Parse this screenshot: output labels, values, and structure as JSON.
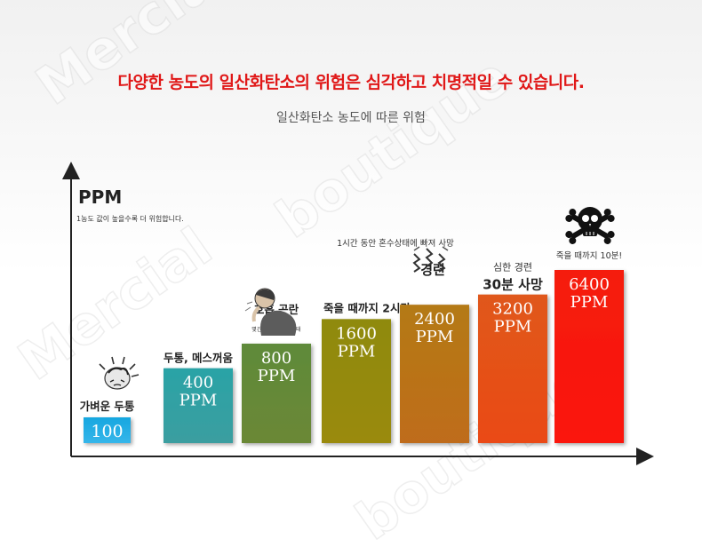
{
  "header": {
    "main_title": "다양한 농도의 일산화탄소의 위험은 심각하고 치명적일 수 있습니다.",
    "subtitle": "일산화탄소 농도에 따른 위험",
    "unit": "PPM",
    "unit_note": "1농도 값이 높을수록 더 위험합니다."
  },
  "colors": {
    "title": "#e01818",
    "bars": [
      "#17a7e0",
      "#2aa3a6",
      "#5f8a3a",
      "#8f8a10",
      "#b47a18",
      "#e0581a",
      "#f51e10"
    ],
    "bars_bottom": [
      "#35b6ea",
      "#3b9ea0",
      "#6b8836",
      "#9a8a10",
      "#bf6c1a",
      "#ea4a18",
      "#fb1208"
    ]
  },
  "watermark": [
    "Mercial",
    "boutique"
  ],
  "icons": [
    {
      "name": "headache-icon",
      "bar": 0
    },
    {
      "name": "coughing-man-icon",
      "bar": 2
    },
    {
      "name": "convulsion-icon",
      "bar": 4
    },
    {
      "name": "skull-crossbones-icon",
      "bar": 6
    }
  ],
  "chart_data": {
    "type": "bar",
    "title": "일산화탄소 농도에 따른 위험",
    "ylabel": "PPM",
    "categories": [
      "100 PPM",
      "400 PPM",
      "800 PPM",
      "1600 PPM",
      "2400 PPM",
      "3200 PPM",
      "6400 PPM"
    ],
    "values": [
      100,
      400,
      800,
      1600,
      2400,
      3200,
      6400
    ],
    "value_labels": [
      [
        "100"
      ],
      [
        "400",
        "PPM"
      ],
      [
        "800",
        "PPM"
      ],
      [
        "1600",
        "PPM"
      ],
      [
        "2400",
        "PPM"
      ],
      [
        "3200",
        "PPM"
      ],
      [
        "6400",
        "PPM"
      ]
    ],
    "effects": [
      {
        "label": "가벼운 두통",
        "note": ""
      },
      {
        "label": "두통, 메스꺼움",
        "note": ""
      },
      {
        "label": "호흡 곤란",
        "note": "몇간 정도의 혼수 상태"
      },
      {
        "label": "죽을 때까지 2시간",
        "note": ""
      },
      {
        "label": "경련",
        "note": "1시간 동안 혼수상태에 빠져 사망"
      },
      {
        "label": "30분 사망",
        "note": "심한 경련"
      },
      {
        "label": "",
        "note": "죽을 때까지 10분!"
      }
    ],
    "grid": false,
    "legend": "none"
  }
}
